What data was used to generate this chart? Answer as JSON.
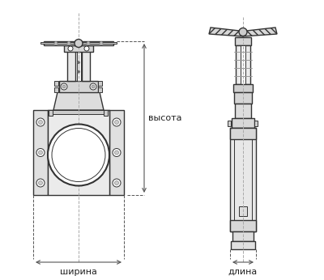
{
  "bg_color": "#ffffff",
  "line_color": "#333333",
  "dim_color": "#555555",
  "label_color": "#222222",
  "label_vysota": "высота",
  "label_shirina": "ширина",
  "label_dlina": "длина",
  "fig_width": 4.0,
  "fig_height": 3.46
}
